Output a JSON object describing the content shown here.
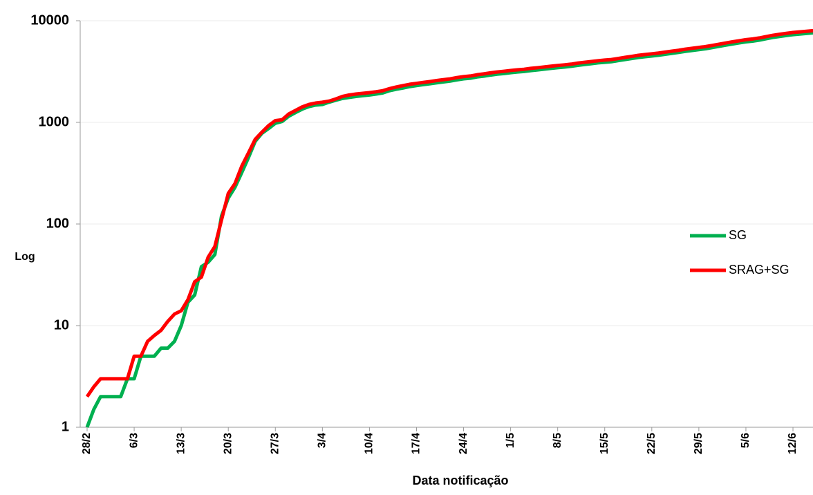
{
  "chart_data": {
    "type": "line",
    "x_label": "Data notificação",
    "y_label": "Log",
    "categories": [
      "28/2",
      null,
      null,
      null,
      null,
      null,
      null,
      "6/3",
      null,
      null,
      null,
      null,
      null,
      null,
      "13/3",
      null,
      null,
      null,
      null,
      null,
      null,
      "20/3",
      null,
      null,
      null,
      null,
      null,
      null,
      "27/3",
      null,
      null,
      null,
      null,
      null,
      null,
      "3/4",
      null,
      null,
      null,
      null,
      null,
      null,
      "10/4",
      null,
      null,
      null,
      null,
      null,
      null,
      "17/4",
      null,
      null,
      null,
      null,
      null,
      null,
      "24/4",
      null,
      null,
      null,
      null,
      null,
      null,
      "1/5",
      null,
      null,
      null,
      null,
      null,
      null,
      "8/5",
      null,
      null,
      null,
      null,
      null,
      null,
      "15/5",
      null,
      null,
      null,
      null,
      null,
      null,
      "22/5",
      null,
      null,
      null,
      null,
      null,
      null,
      "29/5",
      null,
      null,
      null,
      null,
      null,
      null,
      "5/6",
      null,
      null,
      null,
      null,
      null,
      null,
      "12/6",
      null,
      null,
      null
    ],
    "series": [
      {
        "name": "SG",
        "color": "#00b050",
        "values": [
          1,
          1.5,
          2,
          2,
          2,
          2,
          3,
          3,
          5,
          5,
          5,
          6,
          6,
          7,
          10,
          17,
          20,
          38,
          42,
          50,
          120,
          180,
          230,
          320,
          450,
          650,
          780,
          870,
          980,
          1020,
          1150,
          1250,
          1350,
          1430,
          1480,
          1500,
          1580,
          1650,
          1720,
          1760,
          1800,
          1830,
          1860,
          1900,
          1950,
          2050,
          2120,
          2180,
          2250,
          2300,
          2350,
          2400,
          2450,
          2500,
          2550,
          2620,
          2680,
          2720,
          2800,
          2850,
          2920,
          2980,
          3020,
          3080,
          3130,
          3170,
          3230,
          3280,
          3340,
          3400,
          3450,
          3500,
          3560,
          3640,
          3710,
          3780,
          3850,
          3900,
          3950,
          4050,
          4150,
          4250,
          4350,
          4430,
          4500,
          4580,
          4680,
          4780,
          4880,
          5000,
          5100,
          5200,
          5300,
          5450,
          5600,
          5750,
          5900,
          6050,
          6200,
          6300,
          6450,
          6650,
          6850,
          7000,
          7150,
          7300,
          7400,
          7500,
          7600
        ]
      },
      {
        "name": "SRAG+SG",
        "color": "#ff0000",
        "values": [
          2,
          2.5,
          3,
          3,
          3,
          3,
          3,
          5,
          5,
          7,
          8,
          9,
          11,
          13,
          14,
          18,
          27,
          30,
          47,
          60,
          110,
          200,
          250,
          370,
          500,
          680,
          800,
          930,
          1040,
          1060,
          1210,
          1310,
          1420,
          1500,
          1550,
          1580,
          1620,
          1700,
          1800,
          1860,
          1900,
          1930,
          1960,
          2000,
          2050,
          2150,
          2230,
          2300,
          2370,
          2420,
          2470,
          2520,
          2580,
          2630,
          2680,
          2760,
          2820,
          2860,
          2940,
          3000,
          3070,
          3130,
          3180,
          3240,
          3290,
          3330,
          3400,
          3450,
          3510,
          3570,
          3630,
          3680,
          3740,
          3830,
          3900,
          3970,
          4040,
          4100,
          4150,
          4250,
          4360,
          4460,
          4570,
          4650,
          4730,
          4810,
          4910,
          5020,
          5120,
          5250,
          5360,
          5460,
          5570,
          5720,
          5880,
          6040,
          6200,
          6350,
          6510,
          6620,
          6770,
          6980,
          7190,
          7350,
          7510,
          7670,
          7770,
          7880,
          7980
        ]
      }
    ],
    "ylim": [
      1,
      10000
    ],
    "yticks": [
      1,
      10,
      100,
      1000,
      10000
    ],
    "log_scale": true,
    "grid": true,
    "legend": "right"
  }
}
